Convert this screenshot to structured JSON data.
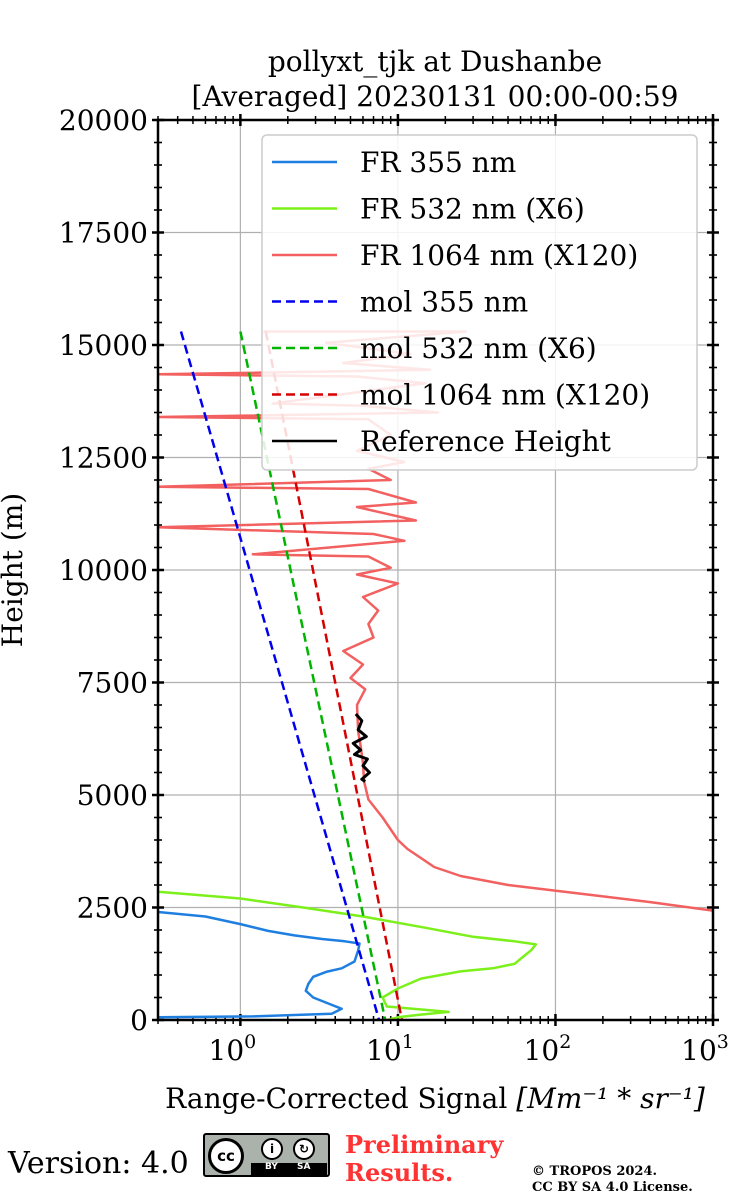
{
  "chart_data": {
    "type": "line",
    "title_line1": "pollyxt_tjk at Dushanbe",
    "title_line2": "[Averaged] 20230131 00:00-00:59",
    "xlabel": "Range-Corrected Signal",
    "xlabel_units": "[Mm⁻¹ * sr⁻¹]",
    "ylabel": "Height (m)",
    "xscale": "log",
    "xlim": [
      0.3,
      1000
    ],
    "ylim": [
      0,
      20000
    ],
    "yticks": [
      0,
      2500,
      5000,
      7500,
      10000,
      12500,
      15000,
      17500,
      20000
    ],
    "ytick_labels": [
      "0",
      "2500",
      "5000",
      "7500",
      "10000",
      "12500",
      "15000",
      "17500",
      "20000"
    ],
    "xticks": [
      {
        "value": 1,
        "base": "10",
        "exp": "0"
      },
      {
        "value": 10,
        "base": "10",
        "exp": "1"
      },
      {
        "value": 100,
        "base": "10",
        "exp": "2"
      },
      {
        "value": 1000,
        "base": "10",
        "exp": "3"
      }
    ],
    "grid": true,
    "legend_position": "top-right",
    "series": [
      {
        "name": "FR 355 nm",
        "color": "#1f7fe0",
        "style": "solid",
        "points": [
          [
            0.3,
            2400
          ],
          [
            0.6,
            2300
          ],
          [
            1.0,
            2130
          ],
          [
            1.5,
            1980
          ],
          [
            2.2,
            1880
          ],
          [
            3.3,
            1800
          ],
          [
            4.6,
            1750
          ],
          [
            5.7,
            1700
          ],
          [
            5.6,
            1550
          ],
          [
            5.3,
            1300
          ],
          [
            4.4,
            1150
          ],
          [
            3.5,
            1070
          ],
          [
            2.9,
            960
          ],
          [
            2.7,
            800
          ],
          [
            2.6,
            650
          ],
          [
            2.9,
            500
          ],
          [
            3.6,
            370
          ],
          [
            4.4,
            250
          ],
          [
            3.8,
            140
          ],
          [
            1.2,
            80
          ],
          [
            0.3,
            60
          ]
        ]
      },
      {
        "name": "FR 532 nm (X6)",
        "color": "#7cf01a",
        "style": "solid",
        "points": [
          [
            0.3,
            2850
          ],
          [
            1.0,
            2700
          ],
          [
            2.5,
            2500
          ],
          [
            6.0,
            2300
          ],
          [
            15,
            2050
          ],
          [
            30,
            1850
          ],
          [
            55,
            1750
          ],
          [
            75,
            1680
          ],
          [
            70,
            1550
          ],
          [
            62,
            1400
          ],
          [
            55,
            1250
          ],
          [
            40,
            1150
          ],
          [
            25,
            1080
          ],
          [
            14,
            920
          ],
          [
            10,
            700
          ],
          [
            8,
            500
          ],
          [
            8.5,
            300
          ],
          [
            21,
            180
          ],
          [
            14,
            120
          ],
          [
            10,
            60
          ],
          [
            8.5,
            0
          ]
        ]
      },
      {
        "name": "FR 1064 nm (X120)",
        "color": "#f26060",
        "style": "solid",
        "points": [
          [
            1.4,
            15300
          ],
          [
            27,
            15300
          ],
          [
            3.5,
            15050
          ],
          [
            12,
            14800
          ],
          [
            4.5,
            14600
          ],
          [
            16,
            14450
          ],
          [
            0.3,
            14350
          ],
          [
            5.5,
            14300
          ],
          [
            15,
            14150
          ],
          [
            1.6,
            13700
          ],
          [
            6,
            13650
          ],
          [
            18,
            13500
          ],
          [
            0.3,
            13400
          ],
          [
            6.5,
            13350
          ],
          [
            9,
            13000
          ],
          [
            5.5,
            12650
          ],
          [
            11,
            12400
          ],
          [
            6.5,
            12250
          ],
          [
            9,
            12000
          ],
          [
            0.3,
            11850
          ],
          [
            6.5,
            11800
          ],
          [
            13,
            11500
          ],
          [
            5.5,
            11400
          ],
          [
            13,
            11100
          ],
          [
            0.3,
            10950
          ],
          [
            7,
            10800
          ],
          [
            11,
            10650
          ],
          [
            1.2,
            10350
          ],
          [
            6.5,
            10300
          ],
          [
            9,
            10050
          ],
          [
            5.5,
            9900
          ],
          [
            10,
            9700
          ],
          [
            6,
            9400
          ],
          [
            7.5,
            9100
          ],
          [
            6.5,
            8800
          ],
          [
            7,
            8500
          ],
          [
            4.5,
            8200
          ],
          [
            6,
            7900
          ],
          [
            5,
            7600
          ],
          [
            6.2,
            7350
          ],
          [
            5.5,
            7000
          ],
          [
            5.6,
            6400
          ],
          [
            5.8,
            6100
          ],
          [
            6.0,
            5700
          ],
          [
            6.1,
            5300
          ],
          [
            6.5,
            4900
          ],
          [
            8.0,
            4500
          ],
          [
            10,
            4000
          ],
          [
            11.5,
            3800
          ],
          [
            14,
            3600
          ],
          [
            17,
            3400
          ],
          [
            25,
            3200
          ],
          [
            50,
            3000
          ],
          [
            150,
            2800
          ],
          [
            400,
            2620
          ],
          [
            1000,
            2430
          ],
          [
            1000,
            2430
          ]
        ]
      },
      {
        "name": "mol 355 nm",
        "color": "#0000ee",
        "style": "dashed",
        "points": [
          [
            0.42,
            15300
          ],
          [
            7.6,
            0
          ]
        ]
      },
      {
        "name": "mol 532 nm (X6)",
        "color": "#00b400",
        "style": "dashed",
        "points": [
          [
            1.0,
            15300
          ],
          [
            8.3,
            0
          ]
        ]
      },
      {
        "name": "mol 1064 nm (X120)",
        "color": "#d60000",
        "style": "dashed",
        "points": [
          [
            1.45,
            15300
          ],
          [
            10.6,
            0
          ]
        ]
      },
      {
        "name": "Reference Height",
        "color": "#000000",
        "style": "solid",
        "points": [
          [
            5.4,
            6800
          ],
          [
            5.9,
            6650
          ],
          [
            5.6,
            6450
          ],
          [
            6.3,
            6300
          ],
          [
            5.2,
            6150
          ],
          [
            5.8,
            6000
          ],
          [
            5.3,
            5900
          ],
          [
            6.4,
            5800
          ],
          [
            6.0,
            5650
          ],
          [
            6.6,
            5500
          ],
          [
            5.9,
            5350
          ],
          [
            6.2,
            5300
          ]
        ]
      }
    ]
  },
  "footer": {
    "version_label": "Version: 4.0",
    "license_by": "BY",
    "license_sa": "SA",
    "license_cc": "cc",
    "license_by_symbol": "i",
    "license_sa_symbol": "↻",
    "preliminary_line1": "Preliminary",
    "preliminary_line2": "Results.",
    "copyright_line1": "© TROPOS 2024.",
    "copyright_line2": "CC BY SA 4.0 License."
  }
}
